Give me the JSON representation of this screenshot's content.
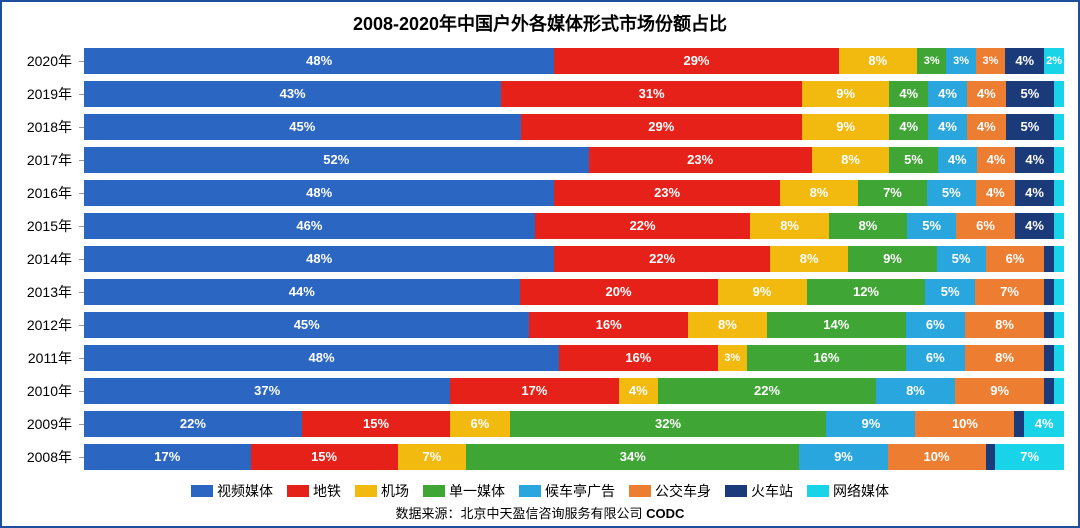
{
  "chart": {
    "type": "stacked-bar-horizontal",
    "title": "2008-2020年中国户外各媒体形式市场份额占比",
    "title_fontsize": 18,
    "border_color": "#1f4e9c",
    "background_color": "#ffffff",
    "label_suffix": "%",
    "series": [
      {
        "name": "视频媒体",
        "color": "#2b66c2"
      },
      {
        "name": "地铁",
        "color": "#e6211a"
      },
      {
        "name": "机场",
        "color": "#f2b90f"
      },
      {
        "name": "单一媒体",
        "color": "#3fa535"
      },
      {
        "name": "候车亭广告",
        "color": "#2aa6de"
      },
      {
        "name": "公交车身",
        "color": "#ed7d31"
      },
      {
        "name": "火车站",
        "color": "#1b3a7a"
      },
      {
        "name": "网络媒体",
        "color": "#19d3e8"
      }
    ],
    "rows": [
      {
        "label": "2020年",
        "values": [
          48,
          29,
          8,
          3,
          3,
          3,
          4,
          2
        ]
      },
      {
        "label": "2019年",
        "values": [
          43,
          31,
          9,
          4,
          4,
          4,
          5,
          1
        ]
      },
      {
        "label": "2018年",
        "values": [
          45,
          29,
          9,
          4,
          4,
          4,
          5,
          1
        ]
      },
      {
        "label": "2017年",
        "values": [
          52,
          23,
          8,
          5,
          4,
          4,
          4,
          1
        ]
      },
      {
        "label": "2016年",
        "values": [
          48,
          23,
          8,
          7,
          5,
          4,
          4,
          1
        ]
      },
      {
        "label": "2015年",
        "values": [
          46,
          22,
          8,
          8,
          5,
          6,
          4,
          1
        ]
      },
      {
        "label": "2014年",
        "values": [
          48,
          22,
          8,
          9,
          5,
          6,
          1,
          1
        ]
      },
      {
        "label": "2013年",
        "values": [
          44,
          20,
          9,
          12,
          5,
          7,
          1,
          1
        ]
      },
      {
        "label": "2012年",
        "values": [
          45,
          16,
          8,
          14,
          6,
          8,
          1,
          1
        ]
      },
      {
        "label": "2011年",
        "values": [
          48,
          16,
          3,
          16,
          6,
          8,
          1,
          1
        ]
      },
      {
        "label": "2010年",
        "values": [
          37,
          17,
          4,
          22,
          8,
          9,
          1,
          1
        ]
      },
      {
        "label": "2009年",
        "values": [
          22,
          15,
          6,
          32,
          9,
          10,
          1,
          4
        ]
      },
      {
        "label": "2008年",
        "values": [
          17,
          15,
          7,
          34,
          9,
          10,
          1,
          7
        ]
      }
    ],
    "hide_label_below": 1,
    "source_prefix": "数据来源：",
    "source_text": "北京中天盈信咨询服务有限公司 ",
    "source_bold": "CODC"
  }
}
